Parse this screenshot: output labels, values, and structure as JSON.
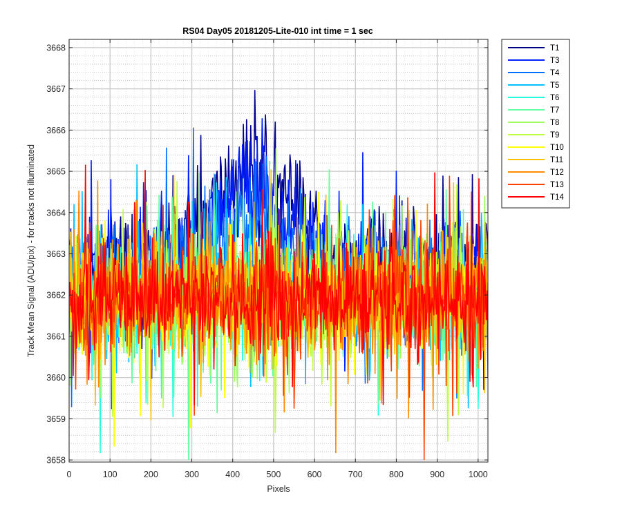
{
  "chart_data": {
    "type": "line",
    "title": "RS04 Day05 20181205-Lite-010 int time = 1 sec",
    "xlabel": "Pixels",
    "ylabel": "Track Mean Signal (ADU/pix) - for tracks not illuminated",
    "xlim": [
      0,
      1024
    ],
    "ylim": [
      3657.95,
      3668.2
    ],
    "x_ticks": [
      0,
      100,
      200,
      300,
      400,
      500,
      600,
      700,
      800,
      900,
      1000
    ],
    "y_ticks": [
      3658,
      3659,
      3660,
      3661,
      3662,
      3663,
      3664,
      3665,
      3666,
      3667,
      3668
    ],
    "grid": "on (major + minor, dotted)",
    "legend_placement": "outside top-right",
    "series": [
      {
        "name": "T1",
        "color": "#00008f",
        "baseline": 3662.7,
        "hump": 2.3
      },
      {
        "name": "T3",
        "color": "#0020ff",
        "baseline": 3662.5,
        "hump": 1.9
      },
      {
        "name": "T4",
        "color": "#0070ff",
        "baseline": 3662.3,
        "hump": 1.5
      },
      {
        "name": "T5",
        "color": "#00c0ff",
        "baseline": 3662.0,
        "hump": 0.3
      },
      {
        "name": "T6",
        "color": "#20ffdf",
        "baseline": 3661.9,
        "hump": 0.2
      },
      {
        "name": "T7",
        "color": "#60ff9f",
        "baseline": 3661.9,
        "hump": 0.1
      },
      {
        "name": "T8",
        "color": "#a0ff60",
        "baseline": 3661.9,
        "hump": 0.0
      },
      {
        "name": "T9",
        "color": "#c0ff40",
        "baseline": 3661.9,
        "hump": 0.0
      },
      {
        "name": "T10",
        "color": "#ffff00",
        "baseline": 3661.9,
        "hump": 0.0
      },
      {
        "name": "T11",
        "color": "#ffc000",
        "baseline": 3661.9,
        "hump": 0.0
      },
      {
        "name": "T12",
        "color": "#ff8c00",
        "baseline": 3661.9,
        "hump": 0.0
      },
      {
        "name": "T13",
        "color": "#ff4000",
        "baseline": 3661.9,
        "hump": 0.0
      },
      {
        "name": "T14",
        "color": "#ff0000",
        "baseline": 3661.9,
        "hump": 0.0
      }
    ],
    "noise_amplitude": 1.2,
    "hump_center": 450,
    "hump_halfwidth": 140
  }
}
